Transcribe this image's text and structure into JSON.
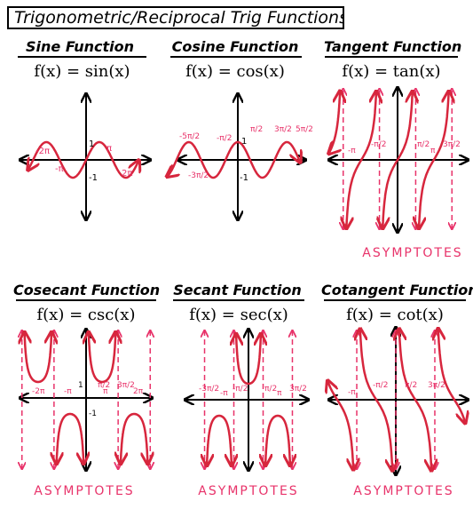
{
  "title": "Trigonometric/Reciprocal Trig Functions",
  "colors": {
    "curve": "#d7263d",
    "asymptote": "#e8336a",
    "axis": "#000000",
    "label": "#e8336a"
  },
  "panels": {
    "sine": {
      "name": "Sine Function",
      "equation": "f(x) = sin(x)",
      "labels": {
        "y_top": "1",
        "y_bot": "-1",
        "neg_2pi": "-2π",
        "neg_pi": "-π",
        "pi": "π",
        "two_pi": "2π"
      }
    },
    "cosine": {
      "name": "Cosine Function",
      "equation": "f(x) = cos(x)",
      "labels": {
        "y_top": "1",
        "y_bot": "-1",
        "n5pi2": "-5π/2",
        "n3pi2": "-3π/2",
        "npi2": "-π/2",
        "pi2": "π/2",
        "p3pi2": "3π/2",
        "p5pi2": "5π/2"
      }
    },
    "tangent": {
      "name": "Tangent Function",
      "equation": "f(x) = tan(x)",
      "asymptotes": "ASYMPTOTES",
      "labels": {
        "neg_pi": "-π",
        "npi2": "-π/2",
        "pi2": "π/2",
        "pi": "π",
        "p3pi2": "3π/2"
      }
    },
    "cosecant": {
      "name": "Cosecant Function",
      "equation": "f(x) = csc(x)",
      "asymptotes": "ASYMPTOTES",
      "labels": {
        "y_top": "1",
        "y_bot": "-1",
        "neg_2pi": "-2π",
        "neg_pi": "-π",
        "pi2": "π/2",
        "pi": "π",
        "p3pi2": "3π/2",
        "two_pi": "2π"
      }
    },
    "secant": {
      "name": "Secant Function",
      "equation": "f(x) = sec(x)",
      "asymptotes": "ASYMPTOTES",
      "labels": {
        "n3pi2": "-3π/2",
        "neg_pi": "-π",
        "npi2": "-π/2",
        "pi2": "π/2",
        "pi": "π",
        "p3pi2": "3π/2"
      }
    },
    "cotangent": {
      "name": "Cotangent Function",
      "equation": "f(x) = cot(x)",
      "asymptotes": "ASYMPTOTES",
      "labels": {
        "neg_pi": "-π",
        "npi2": "-π/2",
        "pi2": "π/2",
        "p3pi2": "3π/2"
      }
    }
  }
}
